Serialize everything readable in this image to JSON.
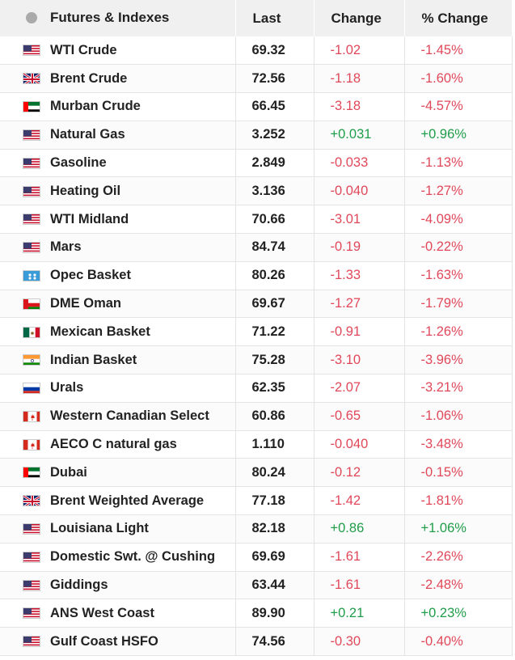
{
  "header": {
    "col_name": "Futures & Indexes",
    "col_last": "Last",
    "col_change": "Change",
    "col_pct": "% Change"
  },
  "rows": [
    {
      "flag": "us",
      "name": "WTI Crude",
      "last": "69.32",
      "change": "-1.02",
      "pct": "-1.45%",
      "dir": "neg"
    },
    {
      "flag": "uk",
      "name": "Brent Crude",
      "last": "72.56",
      "change": "-1.18",
      "pct": "-1.60%",
      "dir": "neg"
    },
    {
      "flag": "ae",
      "name": "Murban Crude",
      "last": "66.45",
      "change": "-3.18",
      "pct": "-4.57%",
      "dir": "neg"
    },
    {
      "flag": "us",
      "name": "Natural Gas",
      "last": "3.252",
      "change": "+0.031",
      "pct": "+0.96%",
      "dir": "pos"
    },
    {
      "flag": "us",
      "name": "Gasoline",
      "last": "2.849",
      "change": "-0.033",
      "pct": "-1.13%",
      "dir": "neg"
    },
    {
      "flag": "us",
      "name": "Heating Oil",
      "last": "3.136",
      "change": "-0.040",
      "pct": "-1.27%",
      "dir": "neg"
    },
    {
      "flag": "us",
      "name": "WTI Midland",
      "last": "70.66",
      "change": "-3.01",
      "pct": "-4.09%",
      "dir": "neg"
    },
    {
      "flag": "us",
      "name": "Mars",
      "last": "84.74",
      "change": "-0.19",
      "pct": "-0.22%",
      "dir": "neg"
    },
    {
      "flag": "opec",
      "name": "Opec Basket",
      "last": "80.26",
      "change": "-1.33",
      "pct": "-1.63%",
      "dir": "neg"
    },
    {
      "flag": "om",
      "name": "DME Oman",
      "last": "69.67",
      "change": "-1.27",
      "pct": "-1.79%",
      "dir": "neg"
    },
    {
      "flag": "mx",
      "name": "Mexican Basket",
      "last": "71.22",
      "change": "-0.91",
      "pct": "-1.26%",
      "dir": "neg"
    },
    {
      "flag": "in",
      "name": "Indian Basket",
      "last": "75.28",
      "change": "-3.10",
      "pct": "-3.96%",
      "dir": "neg"
    },
    {
      "flag": "ru",
      "name": "Urals",
      "last": "62.35",
      "change": "-2.07",
      "pct": "-3.21%",
      "dir": "neg"
    },
    {
      "flag": "ca",
      "name": "Western Canadian Select",
      "last": "60.86",
      "change": "-0.65",
      "pct": "-1.06%",
      "dir": "neg"
    },
    {
      "flag": "ca",
      "name": "AECO C natural gas",
      "last": "1.110",
      "change": "-0.040",
      "pct": "-3.48%",
      "dir": "neg"
    },
    {
      "flag": "ae",
      "name": "Dubai",
      "last": "80.24",
      "change": "-0.12",
      "pct": "-0.15%",
      "dir": "neg"
    },
    {
      "flag": "uk",
      "name": "Brent Weighted Average",
      "last": "77.18",
      "change": "-1.42",
      "pct": "-1.81%",
      "dir": "neg"
    },
    {
      "flag": "us",
      "name": "Louisiana Light",
      "last": "82.18",
      "change": "+0.86",
      "pct": "+1.06%",
      "dir": "pos"
    },
    {
      "flag": "us",
      "name": "Domestic Swt. @ Cushing",
      "last": "69.69",
      "change": "-1.61",
      "pct": "-2.26%",
      "dir": "neg"
    },
    {
      "flag": "us",
      "name": "Giddings",
      "last": "63.44",
      "change": "-1.61",
      "pct": "-2.48%",
      "dir": "neg"
    },
    {
      "flag": "us",
      "name": "ANS West Coast",
      "last": "89.90",
      "change": "+0.21",
      "pct": "+0.23%",
      "dir": "pos"
    },
    {
      "flag": "us",
      "name": "Gulf Coast HSFO",
      "last": "74.56",
      "change": "-0.30",
      "pct": "-0.40%",
      "dir": "neg"
    }
  ],
  "colors": {
    "negative": "#e0485a",
    "positive": "#1f9d4a",
    "header_bg": "#f0f0f0"
  }
}
